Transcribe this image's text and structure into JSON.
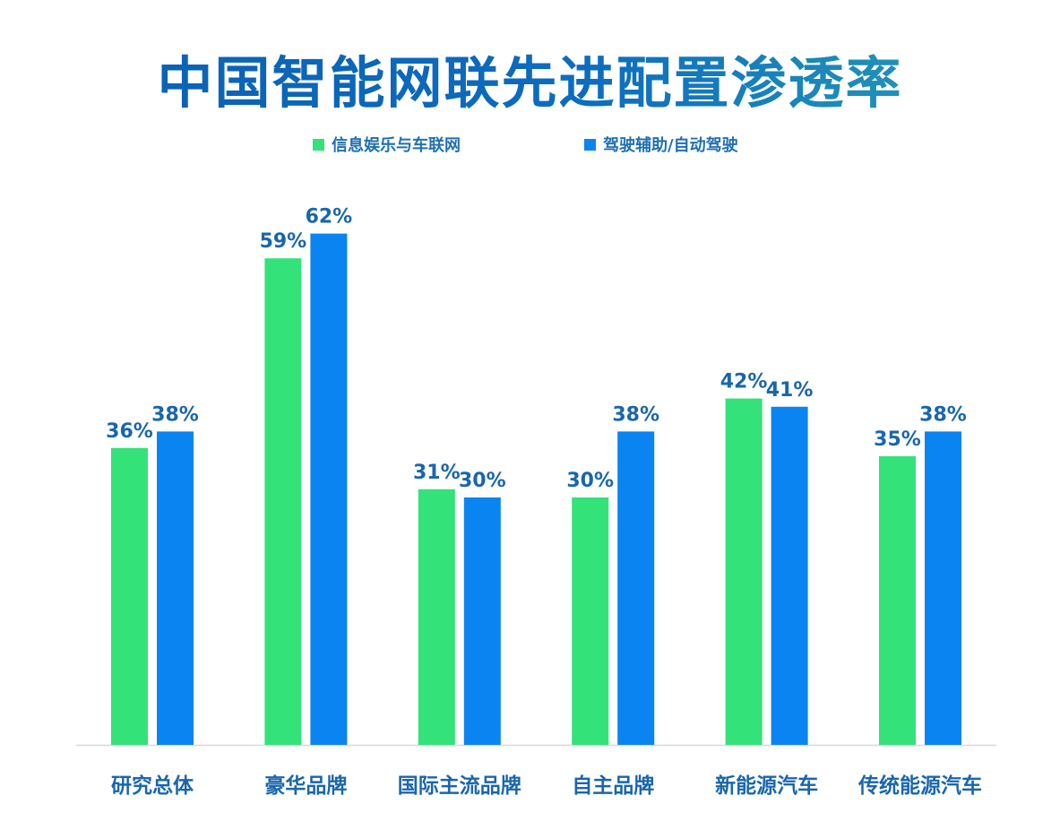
{
  "title": "中国智能网联先进配置渗透率",
  "colors": {
    "series1": "#34e27a",
    "series2": "#0a84f0",
    "text": "#1a66ad",
    "axis": "#d8d8d8"
  },
  "chart_data": {
    "type": "bar",
    "title": "中国智能网联先进配置渗透率",
    "categories": [
      "研究总体",
      "豪华品牌",
      "国际主流品牌",
      "自主品牌",
      "新能源汽车",
      "传统能源汽车"
    ],
    "series": [
      {
        "name": "信息娱乐与车联网",
        "values": [
          36,
          59,
          31,
          30,
          42,
          35
        ],
        "labels": [
          "36%",
          "59%",
          "31%",
          "30%",
          "42%",
          "35%"
        ]
      },
      {
        "name": "驾驶辅助/自动驾驶",
        "values": [
          38,
          62,
          30,
          38,
          41,
          38
        ],
        "labels": [
          "38%",
          "62%",
          "30%",
          "38%",
          "41%",
          "38%"
        ]
      }
    ],
    "ylim": [
      0,
      100
    ],
    "grid": false,
    "legend_position": "top-center"
  }
}
